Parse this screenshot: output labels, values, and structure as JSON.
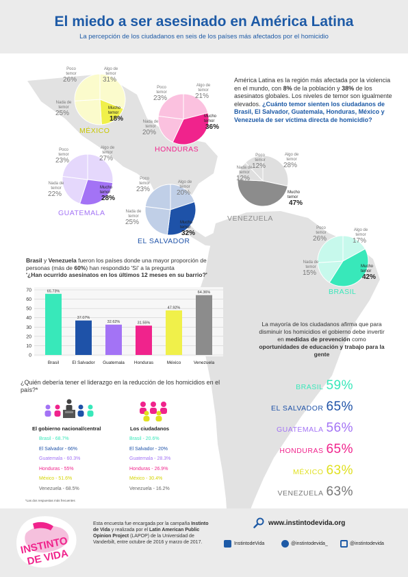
{
  "header": {
    "title": "El miedo a ser asesinado en América Latina",
    "subtitle": "La percepción de los ciudadanos en seis de los países más afectados por el homicidio"
  },
  "pie_labels": {
    "poco": "Poco temor",
    "algo": "Algo de temor",
    "nada": "Nada de temor",
    "mucho": "Mucho temor"
  },
  "pies": [
    {
      "country": "MÉXICO",
      "color": "#f0f04a",
      "poco": "26%",
      "algo": "31%",
      "nada": "25%",
      "mucho": "18%",
      "values": [
        31,
        18,
        25,
        26
      ]
    },
    {
      "country": "HONDURAS",
      "color": "#f0238c",
      "poco": "23%",
      "algo": "21%",
      "nada": "20%",
      "mucho": "36%",
      "values": [
        21,
        36,
        20,
        23
      ]
    },
    {
      "country": "GUATEMALA",
      "color": "#a373f5",
      "poco": "23%",
      "algo": "27%",
      "nada": "22%",
      "mucho": "28%",
      "values": [
        27,
        28,
        22,
        23
      ]
    },
    {
      "country": "EL SALVADOR",
      "color": "#1e52a8",
      "poco": "23%",
      "algo": "20%",
      "nada": "25%",
      "mucho": "32%",
      "values": [
        20,
        32,
        25,
        23
      ]
    },
    {
      "country": "VENEZUELA",
      "color": "#8c8c8c",
      "poco": "12%",
      "algo": "28%",
      "nada": "12%",
      "mucho": "47%",
      "values": [
        28,
        47,
        12,
        12
      ]
    },
    {
      "country": "BRASIL",
      "color": "#38e8ba",
      "poco": "26%",
      "algo": "17%",
      "nada": "15%",
      "mucho": "42%",
      "values": [
        17,
        42,
        15,
        26
      ]
    }
  ],
  "intro": {
    "p1": "América Latina es la región más afectada por la violencia en el mundo, con ",
    "b1": "8%",
    "p2": " de la población y ",
    "b2": "38%",
    "p3": " de los asesinatos globales. Los niveles de temor son igualmente elevados. ",
    "question": "¿Cuánto temor sienten los ciudadanos de Brasil, El Salvador, Guatemala, Honduras, México y Venezuela de ser víctima directa de homicidio?"
  },
  "bar_section": {
    "p1_bold": "Brasil",
    "p1_mid": " y ",
    "p1_bold2": "Venezuela",
    "p1_rest": " fueron los países donde una mayor proporción de personas (más de ",
    "p1_bold3": "60%",
    "p1_end": ") han respondido 'Sí' a la pregunta",
    "question": "'¿Han ocurrido asesinatos en los últimos 12 meses en su barrio?'"
  },
  "chart_data": {
    "type": "bar",
    "categories": [
      "Brasil",
      "El Salvador",
      "Guatemala",
      "Honduras",
      "México",
      "Venezuela"
    ],
    "values": [
      65.73,
      37.07,
      32.62,
      31.55,
      47.92,
      64.36
    ],
    "value_labels": [
      "65.73%",
      "37.07%",
      "32.62%",
      "31.55%",
      "47.92%",
      "64.36%"
    ],
    "colors": [
      "#38e8ba",
      "#1e52a8",
      "#a373f5",
      "#f0238c",
      "#f0f04a",
      "#8c8c8c"
    ],
    "yticks": [
      "0",
      "10",
      "20",
      "30",
      "40",
      "50",
      "60",
      "70"
    ],
    "ylim": [
      0,
      70
    ],
    "grid": true
  },
  "prevention": {
    "t1": "La mayoría de los ciudadanos afirma que para disminuir los homicidios el gobierno debe invertir en ",
    "b1": "medidas de prevención",
    "t2": " como ",
    "b2": "oportunidades de educación y trabajo para la gente",
    "items": [
      {
        "country": "BRASIL",
        "value": "59%",
        "color": "#38e8ba"
      },
      {
        "country": "EL SALVADOR",
        "value": "65%",
        "color": "#1e52a8"
      },
      {
        "country": "GUATEMALA",
        "value": "56%",
        "color": "#a373f5"
      },
      {
        "country": "HONDURAS",
        "value": "65%",
        "color": "#f0238c"
      },
      {
        "country": "MÉXICO",
        "value": "63%",
        "color": "#e0e020"
      },
      {
        "country": "VENEZUELA",
        "value": "63%",
        "color": "#777777"
      }
    ]
  },
  "leadership": {
    "question": "¿Quién debería tener el liderazgo en la reducción de los homicidios en el país?*",
    "gov_title": "El gobierno nacional/central",
    "cit_title": "Los ciudadanos",
    "gov_items": [
      {
        "text": "Brasil - 68.7%",
        "color": "#38e8ba"
      },
      {
        "text": "El Salvador - 66%",
        "color": "#1e52a8"
      },
      {
        "text": "Guatemala - 60.3%",
        "color": "#a373f5"
      },
      {
        "text": "Honduras - 55%",
        "color": "#f0238c"
      },
      {
        "text": "México - 51.6%",
        "color": "#d4d400"
      },
      {
        "text": "Venezuela - 68.5%",
        "color": "#666666"
      }
    ],
    "cit_items": [
      {
        "text": "Brasil - 20.6%",
        "color": "#38e8ba"
      },
      {
        "text": "El Salvador - 20%",
        "color": "#1e52a8"
      },
      {
        "text": "Guatemala - 28.3%",
        "color": "#a373f5"
      },
      {
        "text": "Honduras - 26.9%",
        "color": "#f0238c"
      },
      {
        "text": "México - 30.4%",
        "color": "#d4d400"
      },
      {
        "text": "Venezuela - 16.2%",
        "color": "#666666"
      }
    ],
    "footnote": "*Las dos respuestas más frecuentes"
  },
  "footer": {
    "logo_text": "INSTINTO DE VIDA",
    "t1": "Esta encuesta fue encargada por la campaña ",
    "b1": "Instinto de Vida",
    "t2": " y realizada por el ",
    "b2": "Latin American Public Opinion Project",
    "t3": " (LAPOP) de la Universidad de Vanderbilt, entre octubre de 2016 y marzo de 2017.",
    "website": "www.instintodevida.org",
    "facebook": "InstintodeVida",
    "twitter": "@instintodevida_",
    "instagram": "@instintodevida"
  }
}
